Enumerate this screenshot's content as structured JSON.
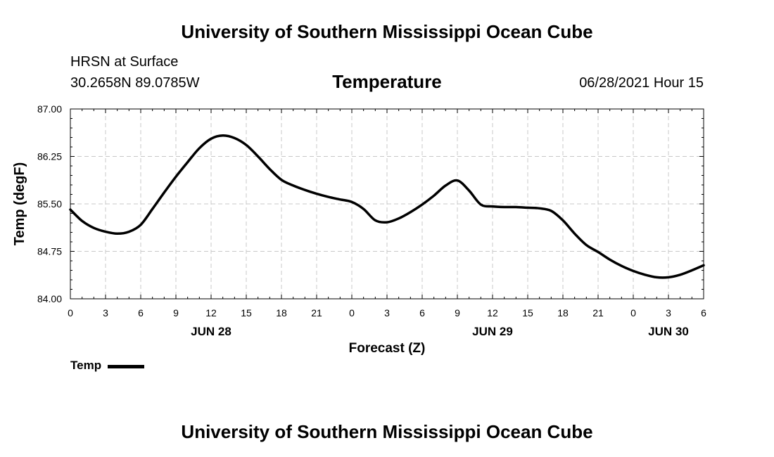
{
  "header": {
    "title": "University of Southern Mississippi Ocean Cube"
  },
  "footer": {
    "title": "University of Southern Mississippi Ocean Cube"
  },
  "station": {
    "name": "HRSN at Surface",
    "coords": "30.2658N  89.0785W"
  },
  "forecast_time": "06/28/2021 Hour 15",
  "legend": {
    "label": "Temp"
  },
  "colors": {
    "line": "#000000",
    "grid": "#c8c8c8",
    "background": "#ffffff"
  },
  "chart_data": {
    "type": "line",
    "title": "Temperature",
    "xlabel": "Forecast (Z)",
    "ylabel": "Temp (degF)",
    "ylim": [
      84.0,
      87.0
    ],
    "yticks": [
      84.0,
      84.75,
      85.5,
      86.25,
      87.0
    ],
    "ytick_labels": [
      "84.00",
      "84.75",
      "85.50",
      "86.25",
      "87.00"
    ],
    "xlim": [
      0,
      54
    ],
    "xticks": [
      0,
      3,
      6,
      9,
      12,
      15,
      18,
      21,
      24,
      27,
      30,
      33,
      36,
      39,
      42,
      45,
      48,
      51,
      54
    ],
    "xtick_labels": [
      "0",
      "3",
      "6",
      "9",
      "12",
      "15",
      "18",
      "21",
      "0",
      "3",
      "6",
      "9",
      "12",
      "15",
      "18",
      "21",
      "0",
      "3",
      "6"
    ],
    "date_labels": [
      {
        "hour": 12,
        "label": "JUN 28"
      },
      {
        "hour": 36,
        "label": "JUN 29"
      },
      {
        "hour": 51,
        "label": "JUN 30"
      }
    ],
    "grid": true,
    "legend": "bottom-left",
    "series": [
      {
        "name": "Temp",
        "x": [
          0,
          1,
          2,
          3,
          4,
          5,
          6,
          7,
          8,
          9,
          10,
          11,
          12,
          13,
          14,
          15,
          16,
          17,
          18,
          19,
          20,
          21,
          22,
          23,
          24,
          25,
          26,
          27,
          28,
          29,
          30,
          31,
          32,
          33,
          34,
          35,
          36,
          37,
          38,
          39,
          40,
          41,
          42,
          43,
          44,
          45,
          46,
          47,
          48,
          49,
          50,
          51,
          52,
          53,
          54
        ],
        "values": [
          85.41,
          85.23,
          85.12,
          85.06,
          85.03,
          85.06,
          85.17,
          85.42,
          85.68,
          85.93,
          86.16,
          86.38,
          86.53,
          86.58,
          86.54,
          86.43,
          86.25,
          86.05,
          85.88,
          85.79,
          85.72,
          85.66,
          85.61,
          85.57,
          85.53,
          85.42,
          85.24,
          85.21,
          85.27,
          85.37,
          85.49,
          85.63,
          85.79,
          85.87,
          85.71,
          85.49,
          85.46,
          85.45,
          85.45,
          85.44,
          85.43,
          85.39,
          85.24,
          85.03,
          84.85,
          84.74,
          84.62,
          84.52,
          84.44,
          84.38,
          84.34,
          84.34,
          84.38,
          84.45,
          84.53
        ]
      }
    ]
  }
}
